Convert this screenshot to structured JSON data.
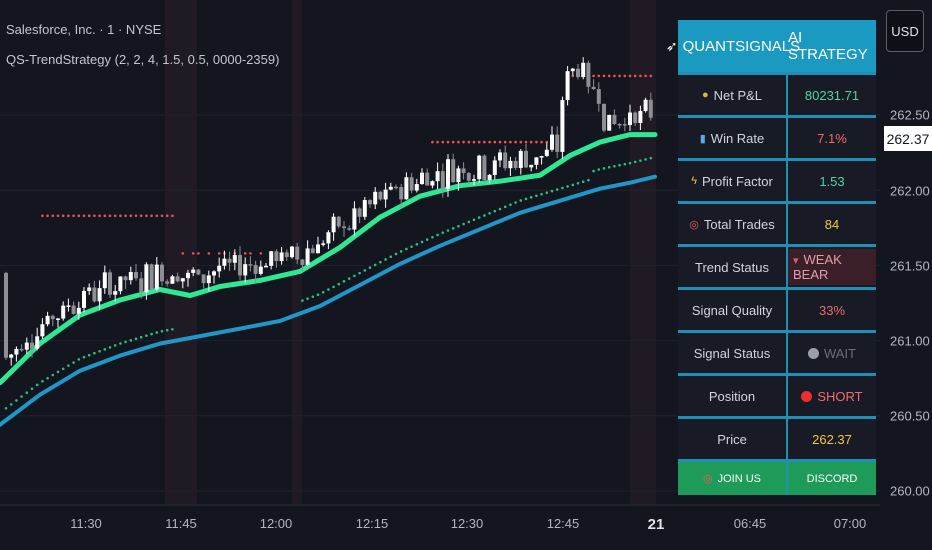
{
  "header": {
    "symbol": "Salesforce, Inc. · 1 · NYSE",
    "strategy": "QS-TrendStrategy (2, 2, 4, 1.5, 0.5, 0000-2359)"
  },
  "currency_button": "USD",
  "price_axis": {
    "labels": [
      "262.50",
      "262.00",
      "261.50",
      "261.00",
      "260.50",
      "260.00"
    ],
    "current_price_tag": "262.37"
  },
  "time_axis": {
    "labels": [
      "11:30",
      "11:45",
      "12:00",
      "12:15",
      "12:30",
      "12:45",
      "21",
      "06:45",
      "07:00"
    ],
    "bold_label": "21"
  },
  "panel": {
    "header_left": "QUANTSIGNALS",
    "header_right": "AI STRATEGY",
    "rows": [
      {
        "label": "Net P&L",
        "icon": "money-bag-icon",
        "value": "80231.71",
        "color": "#4ad7a0"
      },
      {
        "label": "Win Rate",
        "icon": "bar-chart-icon",
        "value": "7.1%",
        "color": "#f06a6a"
      },
      {
        "label": "Profit Factor",
        "icon": "lightning-icon",
        "value": "1.53",
        "color": "#4ad7a0"
      },
      {
        "label": "Total Trades",
        "icon": "target-icon",
        "value": "84",
        "color": "#f5c542"
      },
      {
        "label": "Trend Status",
        "icon": "",
        "value": "WEAK BEAR",
        "value_icon": "chart-down-icon",
        "color": "#e0a0a8"
      },
      {
        "label": "Signal Quality",
        "icon": "",
        "value": "33%",
        "color": "#f06a6a"
      },
      {
        "label": "Signal Status",
        "icon": "",
        "value": "WAIT",
        "value_icon": "grey-circle-icon",
        "color": "#6a6e78"
      },
      {
        "label": "Position",
        "icon": "",
        "value": "SHORT",
        "value_icon": "red-circle-icon",
        "color": "#f06a6a"
      },
      {
        "label": "Price",
        "icon": "",
        "value": "262.37",
        "color": "#f5c542"
      }
    ],
    "footer_left": "JOIN US",
    "footer_right": "DISCORD"
  },
  "colors": {
    "ema_fast": "#2ee894",
    "ema_slow": "#1f98c8",
    "up_candle": "#ffffff",
    "down_candle": "#8d8f95",
    "stop_dots_red": "#ef5350",
    "stop_dots_green": "#26c281",
    "accent": "#1b9ac1"
  },
  "chart_data": {
    "type": "candlestick",
    "y_range": [
      259.95,
      262.95
    ],
    "ema_fast": [
      [
        0,
        260.72
      ],
      [
        40,
        260.98
      ],
      [
        80,
        261.17
      ],
      [
        120,
        261.27
      ],
      [
        160,
        261.34
      ],
      [
        190,
        261.3
      ],
      [
        220,
        261.36
      ],
      [
        260,
        261.4
      ],
      [
        300,
        261.46
      ],
      [
        340,
        261.62
      ],
      [
        380,
        261.82
      ],
      [
        420,
        261.96
      ],
      [
        460,
        262.03
      ],
      [
        500,
        262.06
      ],
      [
        540,
        262.1
      ],
      [
        570,
        262.23
      ],
      [
        600,
        262.32
      ],
      [
        630,
        262.37
      ],
      [
        655,
        262.37
      ]
    ],
    "ema_slow": [
      [
        0,
        260.44
      ],
      [
        40,
        260.64
      ],
      [
        80,
        260.8
      ],
      [
        120,
        260.9
      ],
      [
        160,
        260.98
      ],
      [
        200,
        261.03
      ],
      [
        240,
        261.08
      ],
      [
        280,
        261.13
      ],
      [
        320,
        261.23
      ],
      [
        360,
        261.37
      ],
      [
        400,
        261.51
      ],
      [
        440,
        261.63
      ],
      [
        480,
        261.74
      ],
      [
        520,
        261.85
      ],
      [
        560,
        261.93
      ],
      [
        600,
        262.01
      ],
      [
        630,
        262.05
      ],
      [
        655,
        262.09
      ]
    ]
  }
}
